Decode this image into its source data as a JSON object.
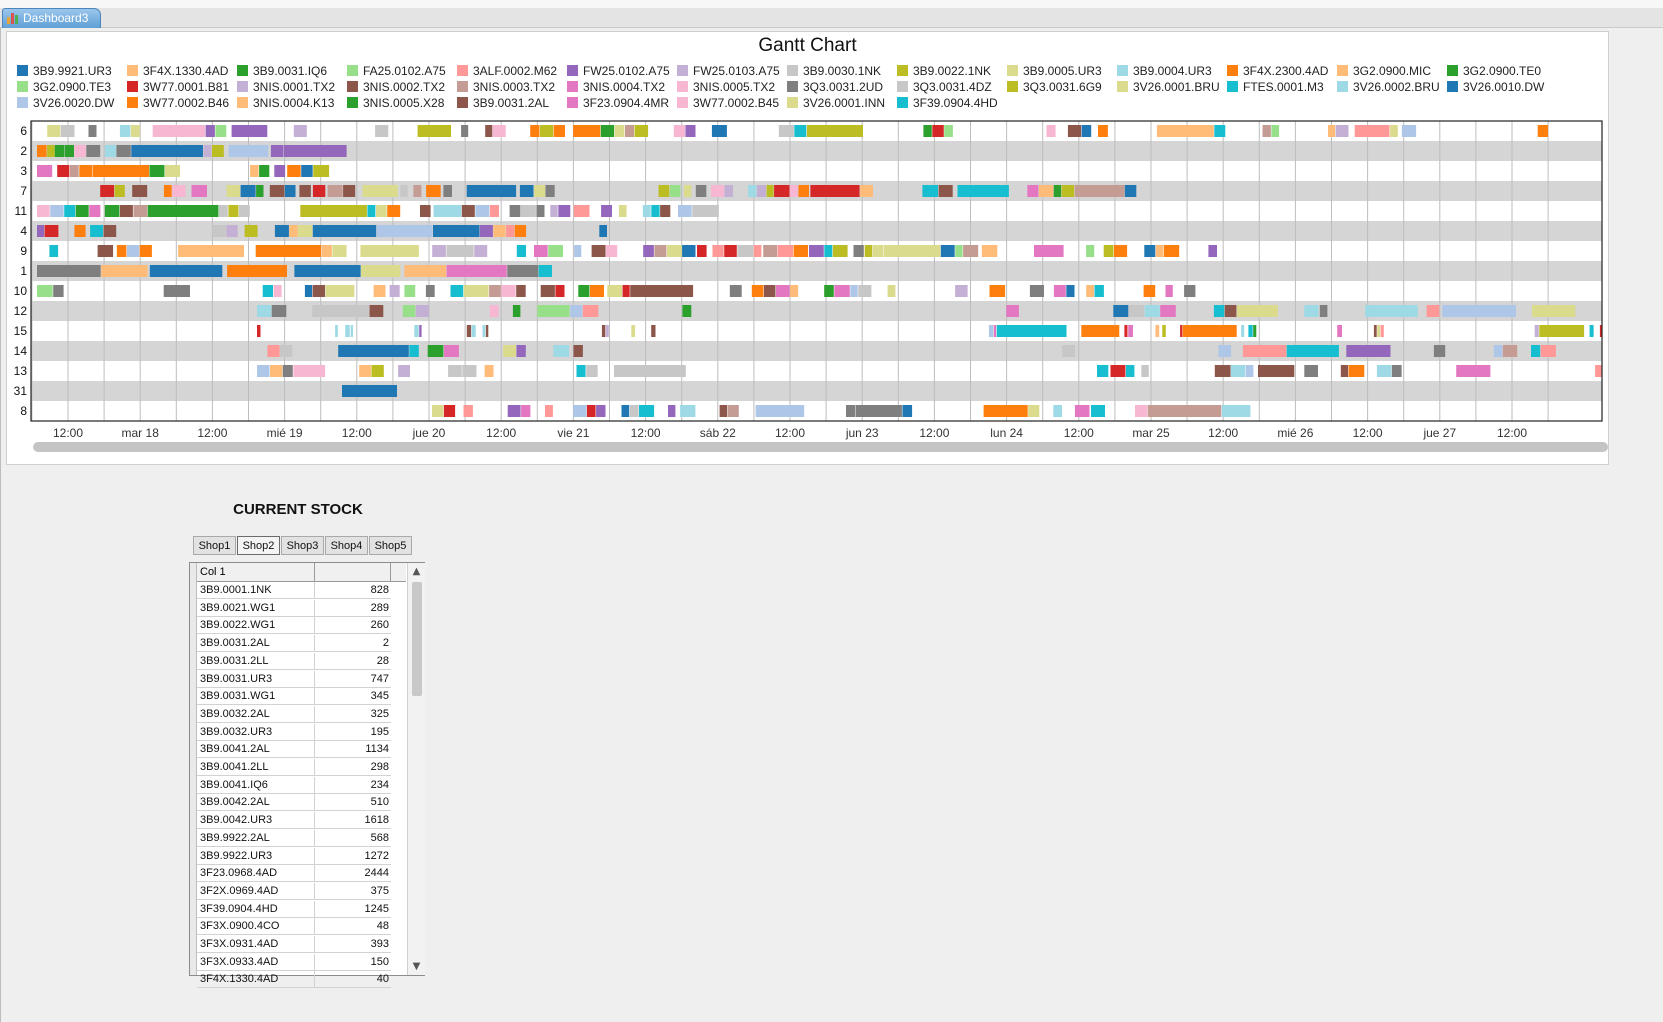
{
  "app": {
    "tab_label": "Dashboard3"
  },
  "gantt": {
    "title": "Gantt Chart",
    "legend": [
      {
        "label": "3B9.9921.UR3",
        "color": "#1f77b4"
      },
      {
        "label": "3F4X.1330.4AD",
        "color": "#ffbb78"
      },
      {
        "label": "3B9.0031.IQ6",
        "color": "#2ca02c"
      },
      {
        "label": "FA25.0102.A75",
        "color": "#98df8a"
      },
      {
        "label": "3ALF.0002.M62",
        "color": "#ff9896"
      },
      {
        "label": "FW25.0102.A75",
        "color": "#9467bd"
      },
      {
        "label": "FW25.0103.A75",
        "color": "#c5b0d5"
      },
      {
        "label": "3B9.0030.1NK",
        "color": "#c7c7c7"
      },
      {
        "label": "3B9.0022.1NK",
        "color": "#bcbd22"
      },
      {
        "label": "3B9.0005.UR3",
        "color": "#dbdb8d"
      },
      {
        "label": "3B9.0004.UR3",
        "color": "#9edae5"
      },
      {
        "label": "3F4X.2300.4AD",
        "color": "#ff7f0e"
      },
      {
        "label": "3G2.0900.MIC",
        "color": "#ffbb78"
      },
      {
        "label": "3G2.0900.TE0",
        "color": "#2ca02c"
      },
      {
        "label": "3G2.0900.TE3",
        "color": "#98df8a"
      },
      {
        "label": "3W77.0001.B81",
        "color": "#d62728"
      },
      {
        "label": "3NIS.0001.TX2",
        "color": "#c5b0d5"
      },
      {
        "label": "3NIS.0002.TX2",
        "color": "#8c564b"
      },
      {
        "label": "3NIS.0003.TX2",
        "color": "#c49c94"
      },
      {
        "label": "3NIS.0004.TX2",
        "color": "#e377c2"
      },
      {
        "label": "3NIS.0005.TX2",
        "color": "#f7b6d2"
      },
      {
        "label": "3Q3.0031.2UD",
        "color": "#7f7f7f"
      },
      {
        "label": "3Q3.0031.4DZ",
        "color": "#c7c7c7"
      },
      {
        "label": "3Q3.0031.6G9",
        "color": "#bcbd22"
      },
      {
        "label": "3V26.0001.BRU",
        "color": "#dbdb8d"
      },
      {
        "label": "FTES.0001.M3",
        "color": "#17becf"
      },
      {
        "label": "3V26.0002.BRU",
        "color": "#9edae5"
      },
      {
        "label": "3V26.0010.DW",
        "color": "#1f77b4"
      },
      {
        "label": "3V26.0020.DW",
        "color": "#aec7e8"
      },
      {
        "label": "3W77.0002.B46",
        "color": "#ff7f0e"
      },
      {
        "label": "3NIS.0004.K13",
        "color": "#ffbb78"
      },
      {
        "label": "3NIS.0005.X28",
        "color": "#2ca02c"
      },
      {
        "label": "3B9.0031.2AL",
        "color": "#8c564b"
      },
      {
        "label": "3F23.0904.4MR",
        "color": "#e377c2"
      },
      {
        "label": "3W77.0002.B45",
        "color": "#f7b6d2"
      },
      {
        "label": "3V26.0001.INN",
        "color": "#dbdb8d"
      },
      {
        "label": "3F39.0904.4HD",
        "color": "#17becf"
      }
    ],
    "rows": [
      "6",
      "2",
      "3",
      "7",
      "11",
      "4",
      "9",
      "1",
      "10",
      "12",
      "15",
      "14",
      "13",
      "31",
      "8"
    ],
    "x_ticks": [
      "12:00",
      "mar 18",
      "12:00",
      "mié 19",
      "12:00",
      "jue 20",
      "12:00",
      "vie 21",
      "12:00",
      "sáb 22",
      "12:00",
      "jun 23",
      "12:00",
      "lun 24",
      "12:00",
      "mar 25",
      "12:00",
      "mié 26",
      "12:00",
      "jue 27",
      "12:00"
    ],
    "palette": [
      "#1f77b4",
      "#aec7e8",
      "#ff7f0e",
      "#ffbb78",
      "#2ca02c",
      "#98df8a",
      "#d62728",
      "#ff9896",
      "#9467bd",
      "#c5b0d5",
      "#8c564b",
      "#c49c94",
      "#e377c2",
      "#f7b6d2",
      "#7f7f7f",
      "#c7c7c7",
      "#bcbd22",
      "#dbdb8d",
      "#17becf",
      "#9edae5"
    ]
  },
  "stock": {
    "title": "CURRENT STOCK",
    "tabs": [
      "Shop1",
      "Shop2",
      "Shop3",
      "Shop4",
      "Shop5"
    ],
    "active_tab": "Shop2",
    "column_header": "Col 1",
    "rows": [
      {
        "code": "3B9.0001.1NK",
        "qty": "828"
      },
      {
        "code": "3B9.0021.WG1",
        "qty": "289"
      },
      {
        "code": "3B9.0022.WG1",
        "qty": "260"
      },
      {
        "code": "3B9.0031.2AL",
        "qty": "2"
      },
      {
        "code": "3B9.0031.2LL",
        "qty": "28"
      },
      {
        "code": "3B9.0031.UR3",
        "qty": "747"
      },
      {
        "code": "3B9.0031.WG1",
        "qty": "345"
      },
      {
        "code": "3B9.0032.2AL",
        "qty": "325"
      },
      {
        "code": "3B9.0032.UR3",
        "qty": "195"
      },
      {
        "code": "3B9.0041.2AL",
        "qty": "1134"
      },
      {
        "code": "3B9.0041.2LL",
        "qty": "298"
      },
      {
        "code": "3B9.0041.IQ6",
        "qty": "234"
      },
      {
        "code": "3B9.0042.2AL",
        "qty": "510"
      },
      {
        "code": "3B9.0042.UR3",
        "qty": "1618"
      },
      {
        "code": "3B9.9922.2AL",
        "qty": "568"
      },
      {
        "code": "3B9.9922.UR3",
        "qty": "1272"
      },
      {
        "code": "3F23.0968.4AD",
        "qty": "2444"
      },
      {
        "code": "3F2X.0969.4AD",
        "qty": "375"
      },
      {
        "code": "3F39.0904.4HD",
        "qty": "1245"
      },
      {
        "code": "3F3X.0900.4CO",
        "qty": "48"
      },
      {
        "code": "3F3X.0931.4AD",
        "qty": "393"
      },
      {
        "code": "3F3X.0933.4AD",
        "qty": "150"
      },
      {
        "code": "3F4X.1330.4AD",
        "qty": "40"
      }
    ]
  }
}
